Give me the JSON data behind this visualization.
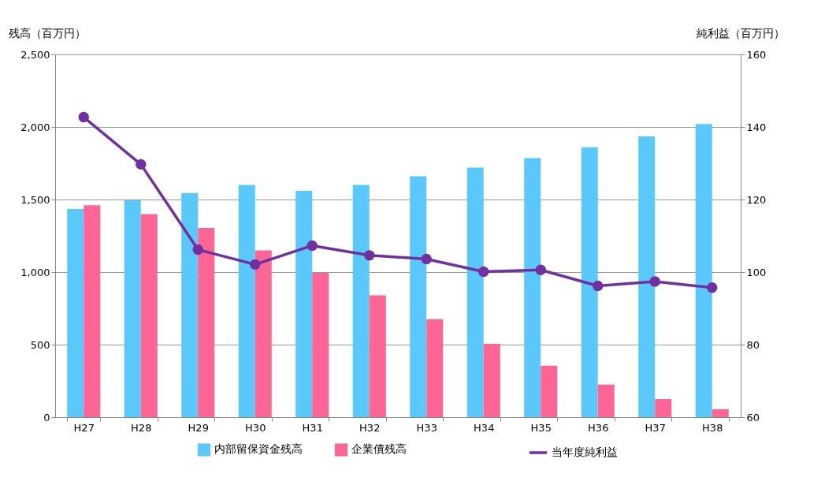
{
  "chart_data": {
    "type": "bar",
    "ylabel": "残高（百万円）",
    "y2label": "純利益（百万円）",
    "categories": [
      "H27",
      "H28",
      "H29",
      "H30",
      "H31",
      "H32",
      "H33",
      "H34",
      "H35",
      "H36",
      "H37",
      "H38"
    ],
    "series": [
      {
        "name": "内部留保資金残高",
        "color": "#5bc8fb",
        "values": [
          1435,
          1495,
          1545,
          1600,
          1560,
          1600,
          1660,
          1720,
          1785,
          1860,
          1935,
          2020
        ]
      },
      {
        "name": "企業債残高",
        "color": "#fd6596",
        "values": [
          1460,
          1400,
          1305,
          1150,
          995,
          840,
          675,
          505,
          355,
          225,
          125,
          55
        ]
      },
      {
        "name": "当年度純利益",
        "color": "#7030a0",
        "type": "line",
        "axis": "y2",
        "marker": "circle",
        "line_style": "solid",
        "values": [
          142.7,
          129.7,
          106.2,
          102.1,
          107.3,
          104.6,
          103.6,
          100.1,
          100.6,
          96.2,
          97.4,
          95.7
        ]
      }
    ],
    "ylim": [
      0,
      2500
    ],
    "yticks": [
      0,
      {
        "value": 500,
        "label": "500"
      },
      {
        "value": 1000,
        "label": "1,000"
      },
      {
        "value": 1500,
        "label": "1,500"
      },
      {
        "value": 2000,
        "label": "2,000"
      },
      {
        "value": 2500,
        "label": "2,500"
      }
    ],
    "y2lim": [
      60,
      160
    ],
    "y2ticks": [
      60,
      80,
      100,
      120,
      140,
      160
    ],
    "grid": "y",
    "legend": "bottom"
  }
}
